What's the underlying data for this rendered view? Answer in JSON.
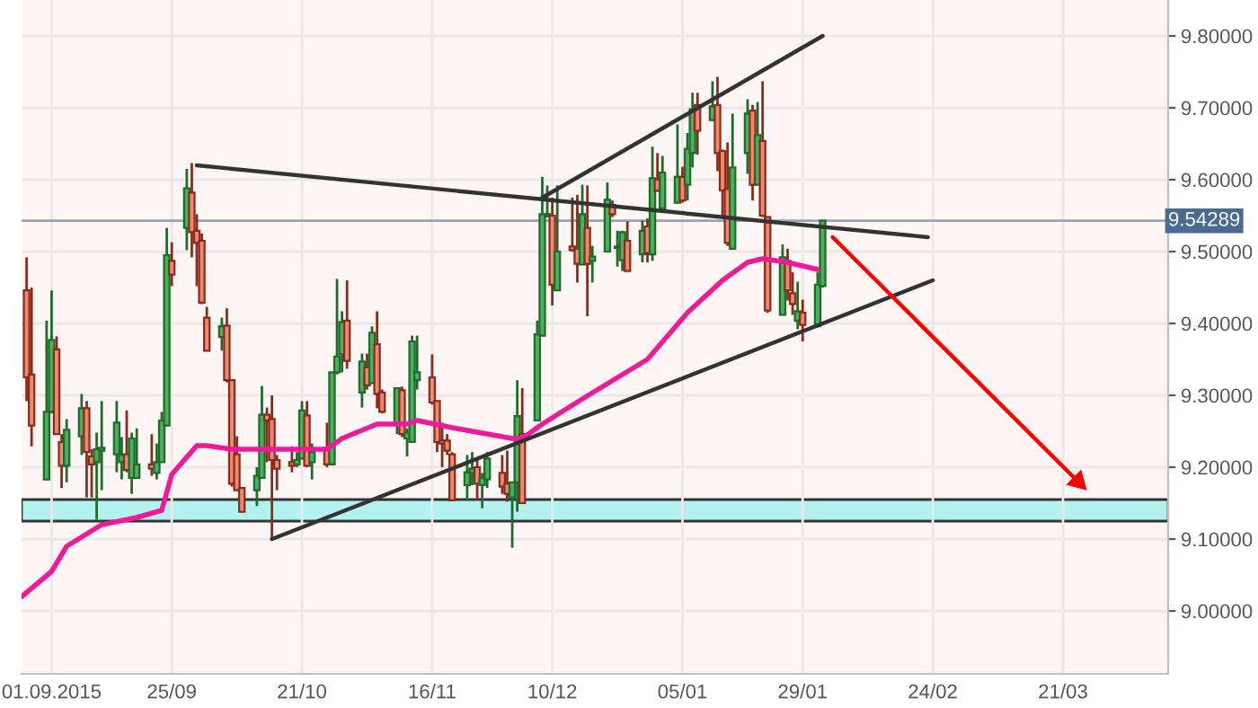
{
  "chart_data": {
    "type": "candlestick",
    "x": [
      "2015-08-27",
      "2015-08-28",
      "2015-08-31",
      "2015-09-01",
      "2015-09-02",
      "2015-09-03",
      "2015-09-04",
      "2015-09-07",
      "2015-09-08",
      "2015-09-09",
      "2015-09-10",
      "2015-09-11",
      "2015-09-14",
      "2015-09-15",
      "2015-09-16",
      "2015-09-17",
      "2015-09-18",
      "2015-09-21",
      "2015-09-22",
      "2015-09-23",
      "2015-09-24",
      "2015-09-25",
      "2015-09-28",
      "2015-09-29",
      "2015-09-30",
      "2015-10-01",
      "2015-10-02",
      "2015-10-05",
      "2015-10-06",
      "2015-10-07",
      "2015-10-08",
      "2015-10-09",
      "2015-10-12",
      "2015-10-13",
      "2015-10-14",
      "2015-10-15",
      "2015-10-16",
      "2015-10-19",
      "2015-10-20",
      "2015-10-21",
      "2015-10-22",
      "2015-10-23",
      "2015-10-26",
      "2015-10-27",
      "2015-10-28",
      "2015-10-29",
      "2015-10-30",
      "2015-11-02",
      "2015-11-03",
      "2015-11-04",
      "2015-11-05",
      "2015-11-06",
      "2015-11-09",
      "2015-11-10",
      "2015-11-11",
      "2015-11-12",
      "2015-11-13",
      "2015-11-16",
      "2015-11-17",
      "2015-11-18",
      "2015-11-19",
      "2015-11-20",
      "2015-11-23",
      "2015-11-24",
      "2015-11-25",
      "2015-11-26",
      "2015-11-27",
      "2015-11-30",
      "2015-12-01",
      "2015-12-02",
      "2015-12-03",
      "2015-12-04",
      "2015-12-07",
      "2015-12-08",
      "2015-12-09",
      "2015-12-10",
      "2015-12-11",
      "2015-12-14",
      "2015-12-15",
      "2015-12-16",
      "2015-12-17",
      "2015-12-18",
      "2015-12-21",
      "2015-12-22",
      "2015-12-23",
      "2015-12-24",
      "2015-12-25",
      "2015-12-28",
      "2015-12-29",
      "2015-12-30",
      "2015-12-31",
      "2016-01-01",
      "2016-01-04",
      "2016-01-05",
      "2016-01-06",
      "2016-01-07",
      "2016-01-08",
      "2016-01-11",
      "2016-01-12",
      "2016-01-13",
      "2016-01-14",
      "2016-01-15",
      "2016-01-18",
      "2016-01-19",
      "2016-01-20",
      "2016-01-21",
      "2016-01-22",
      "2016-01-25",
      "2016-01-26",
      "2016-01-27",
      "2016-01-28",
      "2016-01-29",
      "2016-02-01",
      "2016-02-02"
    ],
    "ohlc": [
      [
        9.446,
        9.492,
        9.292,
        9.325
      ],
      [
        9.329,
        9.45,
        9.229,
        9.258
      ],
      [
        9.183,
        9.404,
        9.182,
        9.277
      ],
      [
        9.277,
        9.446,
        9.275,
        9.377
      ],
      [
        9.364,
        9.382,
        9.245,
        9.246
      ],
      [
        9.235,
        9.246,
        9.171,
        9.202
      ],
      [
        9.202,
        9.267,
        9.179,
        9.252
      ],
      [
        9.243,
        9.302,
        9.217,
        9.282
      ],
      [
        9.282,
        9.292,
        9.158,
        9.221
      ],
      [
        9.215,
        9.225,
        9.158,
        9.204
      ],
      [
        9.207,
        9.248,
        9.127,
        9.225
      ],
      [
        9.223,
        9.292,
        9.168,
        9.227
      ],
      [
        9.218,
        9.292,
        9.193,
        9.262
      ],
      [
        9.207,
        9.242,
        9.183,
        9.217
      ],
      [
        9.218,
        9.279,
        9.193,
        9.196
      ],
      [
        9.185,
        9.248,
        9.163,
        9.24
      ],
      [
        9.185,
        9.254,
        9.185,
        9.204
      ],
      [
        9.204,
        9.246,
        9.188,
        9.198
      ],
      [
        9.192,
        9.233,
        9.183,
        9.207
      ],
      [
        9.207,
        9.277,
        9.207,
        9.265
      ],
      [
        9.258,
        9.533,
        9.258,
        9.495
      ],
      [
        9.487,
        9.513,
        9.452,
        9.468
      ],
      [
        9.533,
        9.615,
        9.502,
        9.588
      ],
      [
        9.582,
        9.623,
        9.492,
        9.527
      ],
      [
        9.529,
        9.552,
        9.452,
        9.512
      ],
      [
        9.515,
        9.525,
        9.427,
        9.429
      ],
      [
        9.408,
        9.423,
        9.362,
        9.362
      ],
      [
        9.381,
        9.408,
        9.362,
        9.396
      ],
      [
        9.397,
        9.421,
        9.318,
        9.321
      ],
      [
        9.321,
        9.321,
        9.173,
        9.177
      ],
      [
        9.218,
        9.243,
        9.168,
        9.168
      ],
      [
        9.171,
        9.171,
        9.138,
        9.138
      ],
      [
        9.168,
        9.2,
        9.146,
        9.188
      ],
      [
        9.185,
        9.313,
        9.185,
        9.273
      ],
      [
        9.273,
        9.283,
        9.207,
        9.265
      ],
      [
        9.267,
        9.3,
        9.1,
        9.21
      ],
      [
        9.21,
        9.217,
        9.168,
        9.198
      ],
      [
        9.207,
        9.229,
        9.193,
        9.202
      ],
      [
        9.204,
        9.221,
        9.2,
        9.21
      ],
      [
        9.212,
        9.292,
        9.212,
        9.279
      ],
      [
        9.272,
        9.292,
        9.2,
        9.202
      ],
      [
        9.207,
        9.233,
        9.183,
        9.221
      ],
      [
        9.227,
        9.262,
        9.2,
        9.204
      ],
      [
        9.204,
        9.332,
        9.204,
        9.332
      ],
      [
        9.332,
        9.462,
        9.329,
        9.354
      ],
      [
        9.357,
        9.417,
        9.332,
        9.402
      ],
      [
        9.404,
        9.46,
        9.337,
        9.348
      ],
      [
        9.304,
        9.358,
        9.283,
        9.347
      ],
      [
        9.339,
        9.358,
        9.308,
        9.314
      ],
      [
        9.317,
        9.396,
        9.317,
        9.387
      ],
      [
        9.371,
        9.417,
        9.282,
        9.302
      ],
      [
        9.304,
        9.308,
        9.275,
        9.277
      ],
      [
        9.26,
        9.31,
        9.246,
        9.31
      ],
      [
        9.307,
        9.312,
        9.242,
        9.246
      ],
      [
        9.24,
        9.254,
        9.215,
        9.248
      ],
      [
        9.235,
        9.383,
        9.235,
        9.375
      ],
      [
        9.321,
        9.383,
        9.308,
        9.332
      ],
      [
        9.325,
        9.357,
        9.287,
        9.29
      ],
      [
        9.292,
        9.292,
        9.221,
        9.235
      ],
      [
        9.237,
        9.262,
        9.2,
        9.233
      ],
      [
        9.237,
        9.246,
        9.217,
        9.223
      ],
      [
        9.218,
        9.221,
        9.154,
        9.154
      ],
      [
        9.175,
        9.217,
        9.154,
        9.193
      ],
      [
        9.192,
        9.221,
        9.175,
        9.198
      ],
      [
        9.2,
        9.212,
        9.154,
        9.177
      ],
      [
        9.175,
        9.192,
        9.143,
        9.185
      ],
      [
        9.183,
        9.221,
        9.171,
        9.212
      ],
      [
        9.192,
        9.217,
        9.163,
        9.173
      ],
      [
        9.177,
        9.223,
        9.152,
        9.163
      ],
      [
        9.158,
        9.179,
        9.088,
        9.179
      ],
      [
        9.179,
        9.321,
        9.138,
        9.271
      ],
      [
        9.246,
        9.31,
        9.15,
        9.15
      ],
      [
        9.265,
        9.404,
        9.265,
        9.385
      ],
      [
        9.383,
        9.604,
        9.383,
        9.552
      ],
      [
        9.549,
        9.592,
        9.548,
        9.552
      ],
      [
        9.55,
        9.575,
        9.425,
        9.454
      ],
      [
        9.446,
        9.592,
        9.446,
        9.5
      ],
      [
        9.507,
        9.575,
        9.5,
        9.502
      ],
      [
        9.504,
        9.579,
        9.457,
        9.483
      ],
      [
        9.482,
        9.593,
        9.482,
        9.552
      ],
      [
        9.533,
        9.592,
        9.41,
        9.483
      ],
      [
        9.487,
        9.508,
        9.457,
        9.493
      ],
      [
        9.5,
        9.596,
        9.5,
        9.572
      ],
      [
        9.565,
        9.571,
        9.548,
        9.552
      ],
      [
        9.505,
        9.529,
        9.479,
        9.507
      ],
      [
        9.488,
        9.529,
        9.473,
        9.527
      ],
      [
        9.515,
        9.542,
        9.473,
        9.473
      ],
      [
        9.496,
        9.543,
        9.485,
        9.529
      ],
      [
        9.535,
        9.546,
        9.485,
        9.498
      ],
      [
        9.496,
        9.646,
        9.487,
        9.602
      ],
      [
        9.6,
        9.637,
        9.583,
        9.585
      ],
      [
        9.56,
        9.633,
        9.557,
        9.61
      ],
      [
        9.568,
        9.677,
        9.567,
        9.604
      ],
      [
        9.604,
        9.618,
        9.568,
        9.571
      ],
      [
        9.593,
        9.665,
        9.571,
        9.643
      ],
      [
        9.637,
        9.721,
        9.617,
        9.698
      ],
      [
        9.704,
        9.721,
        9.635,
        9.668
      ],
      [
        9.683,
        9.737,
        9.682,
        9.702
      ],
      [
        9.704,
        9.743,
        9.612,
        9.637
      ],
      [
        9.64,
        9.642,
        9.55,
        9.585
      ],
      [
        9.587,
        9.652,
        9.508,
        9.512
      ],
      [
        9.504,
        9.692,
        9.504,
        9.617
      ],
      [
        9.637,
        9.712,
        9.608,
        9.692
      ],
      [
        9.696,
        9.704,
        9.571,
        9.593
      ],
      [
        9.593,
        9.708,
        9.593,
        9.662
      ],
      [
        9.654,
        9.737,
        9.548,
        9.55
      ],
      [
        9.548,
        9.548,
        9.415,
        9.418
      ],
      [
        9.412,
        9.51,
        9.412,
        9.492
      ],
      [
        9.487,
        9.504,
        9.432,
        9.446
      ],
      [
        9.442,
        9.471,
        9.412,
        9.427
      ],
      [
        9.404,
        9.458,
        9.392,
        9.417
      ],
      [
        9.415,
        9.433,
        9.375,
        9.398
      ],
      [
        9.396,
        9.471,
        9.396,
        9.454
      ],
      [
        9.452,
        9.54289,
        9.45,
        9.54289
      ]
    ],
    "series": [
      {
        "type": "line",
        "color": "#ee1a9a",
        "x": [
          "2015-08-26",
          "2015-09-01",
          "2015-09-04",
          "2015-09-11",
          "2015-09-18",
          "2015-09-23",
          "2015-09-25",
          "2015-09-30",
          "2015-10-02",
          "2015-10-07",
          "2015-10-16",
          "2015-10-26",
          "2015-10-29",
          "2015-11-05",
          "2015-11-11",
          "2015-11-13",
          "2015-11-20",
          "2015-12-02",
          "2015-12-04",
          "2015-12-08",
          "2015-12-16",
          "2015-12-29",
          "2016-01-06",
          "2016-01-13",
          "2016-01-18",
          "2016-01-21",
          "2016-01-26",
          "2016-02-01"
        ],
        "values": [
          9.02,
          9.055,
          9.09,
          9.12,
          9.13,
          9.14,
          9.19,
          9.23,
          9.23,
          9.225,
          9.225,
          9.225,
          9.24,
          9.26,
          9.26,
          9.265,
          9.255,
          9.24,
          9.24,
          9.26,
          9.295,
          9.35,
          9.415,
          9.46,
          9.485,
          9.49,
          9.485,
          9.475
        ]
      },
      {
        "type": "line",
        "color": "#333333",
        "x": [
          "2015-09-30",
          "2016-02-23"
        ],
        "values": [
          9.62,
          9.52
        ]
      },
      {
        "type": "line",
        "color": "#333333",
        "x": [
          "2015-10-15",
          "2016-02-24"
        ],
        "values": [
          9.1,
          9.46
        ]
      },
      {
        "type": "line",
        "color": "#333333",
        "x": [
          "2015-12-08",
          "2016-02-02"
        ],
        "values": [
          9.575,
          9.8
        ]
      },
      {
        "type": "line",
        "color": "#ff0000",
        "marker": "triangle",
        "x": [
          "2016-02-04",
          "2016-03-24"
        ],
        "values": [
          9.52,
          9.18
        ]
      }
    ],
    "bands": [
      {
        "axis": "y",
        "from": 9.125,
        "to": 9.155,
        "color": "#b4f2ef"
      }
    ],
    "ref_lines": [
      {
        "axis": "y",
        "value": 9.54289,
        "label": "9.54289",
        "color": "#9aa3b5"
      }
    ],
    "xlim": [
      "2015-08-26",
      "2016-04-11"
    ],
    "xticks": [
      {
        "value": "2015-09-01",
        "label": "01.09.2015"
      },
      {
        "value": "2015-09-25",
        "label": "25/09"
      },
      {
        "value": "2015-10-21",
        "label": "21/10"
      },
      {
        "value": "2015-11-16",
        "label": "16/11"
      },
      {
        "value": "2015-12-10",
        "label": "10/12"
      },
      {
        "value": "2016-01-05",
        "label": "05/01"
      },
      {
        "value": "2016-01-29",
        "label": "29/01"
      },
      {
        "value": "2016-02-24",
        "label": "24/02"
      },
      {
        "value": "2016-03-21",
        "label": "21/03"
      }
    ],
    "ylim": [
      8.9125,
      9.85
    ],
    "yticks": [
      {
        "value": 9.0,
        "label": "9.00000"
      },
      {
        "value": 9.1,
        "label": "9.10000"
      },
      {
        "value": 9.2,
        "label": "9.20000"
      },
      {
        "value": 9.3,
        "label": "9.30000"
      },
      {
        "value": 9.4,
        "label": "9.40000"
      },
      {
        "value": 9.5,
        "label": "9.50000"
      },
      {
        "value": 9.6,
        "label": "9.60000"
      },
      {
        "value": 9.7,
        "label": "9.70000"
      },
      {
        "value": 9.8,
        "label": "9.80000"
      }
    ],
    "grid": true
  }
}
